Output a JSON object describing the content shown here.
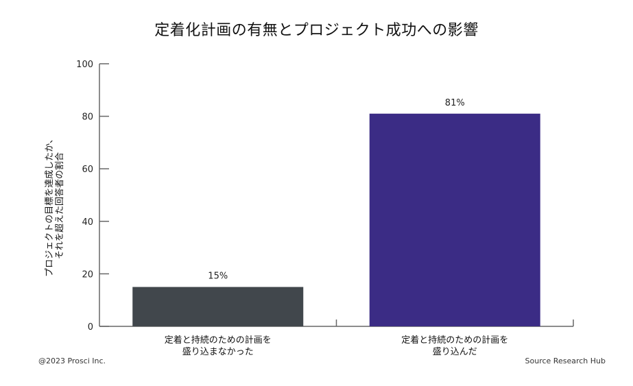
{
  "chart_data": {
    "type": "bar",
    "title": "定着化計画の有無とプロジェクト成功への影響",
    "ylabel_lines": [
      "プロジェクトの目標を達成したか、",
      "それを超えた回答者の割合"
    ],
    "categories": [
      [
        "定着と持続のための計画を",
        "盛り込まなかった"
      ],
      [
        "定着と持続のための計画を",
        "盛り込んだ"
      ]
    ],
    "values": [
      15,
      81
    ],
    "value_labels": [
      "15%",
      "81%"
    ],
    "colors": [
      "#41474c",
      "#3b2c85"
    ],
    "ylim": [
      0,
      100
    ],
    "yticks": [
      0,
      20,
      40,
      60,
      80,
      100
    ],
    "grid": false
  },
  "footer": {
    "copyright": "@2023 Prosci Inc.",
    "source": "Source Research Hub"
  }
}
